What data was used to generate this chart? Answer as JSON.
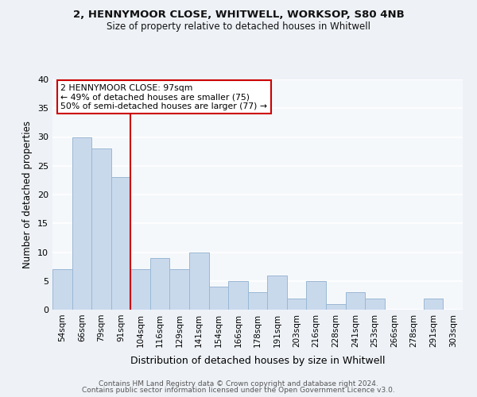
{
  "title1": "2, HENNYMOOR CLOSE, WHITWELL, WORKSOP, S80 4NB",
  "title2": "Size of property relative to detached houses in Whitwell",
  "xlabel": "Distribution of detached houses by size in Whitwell",
  "ylabel": "Number of detached properties",
  "bins": [
    "54sqm",
    "66sqm",
    "79sqm",
    "91sqm",
    "104sqm",
    "116sqm",
    "129sqm",
    "141sqm",
    "154sqm",
    "166sqm",
    "178sqm",
    "191sqm",
    "203sqm",
    "216sqm",
    "228sqm",
    "241sqm",
    "253sqm",
    "266sqm",
    "278sqm",
    "291sqm",
    "303sqm"
  ],
  "values": [
    7,
    30,
    28,
    23,
    7,
    9,
    7,
    10,
    4,
    5,
    3,
    6,
    2,
    5,
    1,
    3,
    2,
    0,
    0,
    2,
    0
  ],
  "bar_color": "#c9d9ec",
  "bar_edge_color": "#9ab8d4",
  "vline_color": "#cc0000",
  "vline_x_index": 3,
  "annotation_text": "2 HENNYMOOR CLOSE: 97sqm\n← 49% of detached houses are smaller (75)\n50% of semi-detached houses are larger (77) →",
  "ylim": [
    0,
    40
  ],
  "yticks": [
    0,
    5,
    10,
    15,
    20,
    25,
    30,
    35,
    40
  ],
  "footer1": "Contains HM Land Registry data © Crown copyright and database right 2024.",
  "footer2": "Contains public sector information licensed under the Open Government Licence v3.0.",
  "bg_color": "#eef2f7",
  "plot_bg_color": "#f5f8fb",
  "grid_color": "#ffffff",
  "title1_fontsize": 9.5,
  "title2_fontsize": 8.5
}
